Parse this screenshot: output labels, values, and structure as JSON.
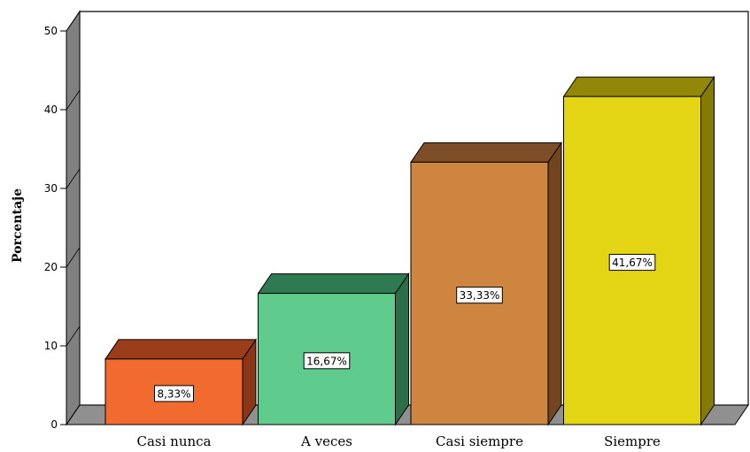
{
  "chart_data": {
    "type": "bar",
    "style": "3d",
    "categories": [
      "Casi nunca",
      "A veces",
      "Casi siempre",
      "Siempre"
    ],
    "values": [
      8.33,
      16.67,
      33.33,
      41.67
    ],
    "data_labels": [
      "8,33%",
      "16,67%",
      "33,33%",
      "41,67%"
    ],
    "title": "",
    "xlabel": "",
    "ylabel": "Porcentaje",
    "ylim": [
      0,
      50
    ],
    "yticks": [
      0,
      10,
      20,
      30,
      40,
      50
    ],
    "grid": false,
    "colors": {
      "front": [
        "#f26b2e",
        "#5fcb8c",
        "#cd853f",
        "#e3d414"
      ],
      "top": [
        "#9c3d1a",
        "#2f7a50",
        "#7e4e28",
        "#938707"
      ],
      "side": [
        "#8a3617",
        "#2b6e48",
        "#70451f",
        "#847a06"
      ],
      "wall": "#808080",
      "floor": "#909090"
    }
  }
}
